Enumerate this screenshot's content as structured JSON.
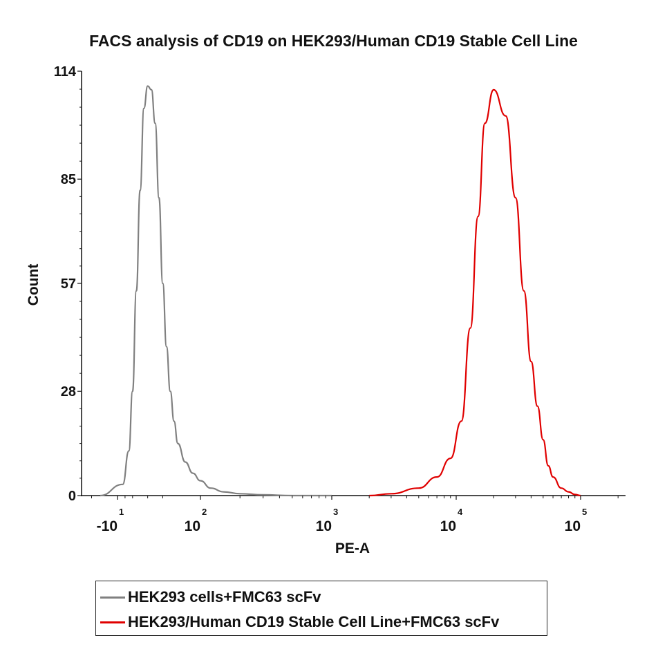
{
  "chart_data": {
    "type": "line",
    "title": "FACS analysis of CD19 on HEK293/Human CD19 Stable Cell Line",
    "xlabel": "PE-A",
    "ylabel": "Count",
    "x_scale": "biexponential (log)",
    "xlim": [
      -30,
      200000
    ],
    "ylim": [
      0,
      114
    ],
    "yticks": [
      {
        "value": 0,
        "label": "0"
      },
      {
        "value": 28,
        "label": "28"
      },
      {
        "value": 57,
        "label": "57"
      },
      {
        "value": 85,
        "label": "85"
      },
      {
        "value": 114,
        "label": "114"
      }
    ],
    "xticks": [
      {
        "value": -10,
        "base": "-10",
        "exp": "1"
      },
      {
        "value": 100,
        "base": "10",
        "exp": "2"
      },
      {
        "value": 1000,
        "base": "10",
        "exp": "3"
      },
      {
        "value": 10000,
        "base": "10",
        "exp": "4"
      },
      {
        "value": 100000,
        "base": "10",
        "exp": "5"
      }
    ],
    "grid": false,
    "legend_position": "bottom",
    "series": [
      {
        "name": "HEK293 cells+FMC63 scFv",
        "color": "#808080",
        "x": [
          -20,
          -3,
          5,
          10,
          15,
          20,
          25,
          30,
          35,
          40,
          45,
          50,
          55,
          60,
          65,
          70,
          80,
          90,
          100,
          120,
          150,
          200,
          300,
          500,
          1000
        ],
        "y": [
          0,
          3,
          12,
          28,
          55,
          82,
          104,
          110,
          109,
          100,
          80,
          57,
          40,
          28,
          20,
          14,
          9,
          6,
          4,
          2,
          1,
          0.5,
          0.2,
          0,
          0
        ]
      },
      {
        "name": "HEK293/Human CD19 Stable Cell Line+FMC63 scFv",
        "color": "#e00000",
        "x": [
          2000,
          3000,
          5000,
          7000,
          9000,
          11000,
          13000,
          15000,
          17000,
          20000,
          25000,
          30000,
          35000,
          40000,
          45000,
          50000,
          55000,
          60000,
          70000,
          80000,
          90000,
          100000
        ],
        "y": [
          0,
          0.5,
          2,
          5,
          10,
          20,
          45,
          75,
          100,
          109,
          102,
          80,
          55,
          36,
          24,
          15,
          8,
          5,
          2,
          1,
          0.3,
          0
        ]
      }
    ]
  }
}
